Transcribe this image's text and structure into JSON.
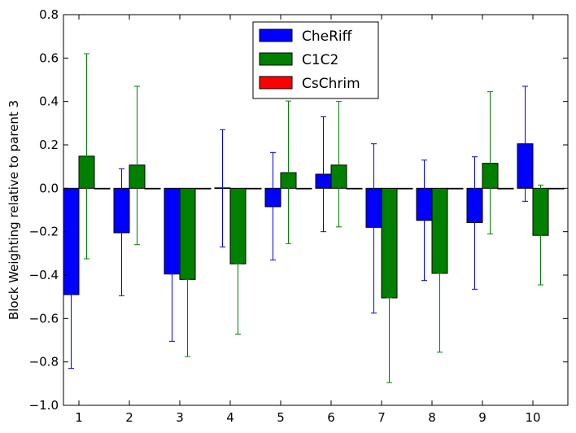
{
  "chart_data": {
    "type": "bar",
    "title": "",
    "xlabel": "",
    "ylabel": "Block Weighting relative to parent 3",
    "ylim": [
      -1.0,
      0.8
    ],
    "yticks": [
      -1.0,
      -0.8,
      -0.6,
      -0.4,
      -0.2,
      0.0,
      0.2,
      0.4,
      0.6,
      0.8
    ],
    "ytick_labels": [
      "−1.0",
      "−0.8",
      "−0.6",
      "−0.4",
      "−0.2",
      "0.0",
      "0.2",
      "0.4",
      "0.6",
      "0.8"
    ],
    "categories": [
      "1",
      "2",
      "3",
      "4",
      "5",
      "6",
      "7",
      "8",
      "9",
      "10"
    ],
    "grid": false,
    "legend_position": "top-center",
    "series": [
      {
        "name": "CheRiff",
        "color": "#0000ff",
        "values": [
          -0.49,
          -0.205,
          -0.395,
          0.002,
          -0.085,
          0.065,
          -0.18,
          -0.148,
          -0.158,
          0.205
        ],
        "err_low": [
          -0.83,
          -0.495,
          -0.705,
          -0.27,
          -0.33,
          -0.2,
          -0.575,
          -0.425,
          -0.465,
          -0.06
        ],
        "err_high": [
          -0.49,
          0.09,
          -0.395,
          0.27,
          0.165,
          0.33,
          0.205,
          0.13,
          0.145,
          0.47
        ]
      },
      {
        "name": "C1C2",
        "color": "#008000",
        "values": [
          0.148,
          0.107,
          -0.42,
          -0.348,
          0.072,
          0.107,
          -0.505,
          -0.392,
          0.115,
          -0.217
        ],
        "err_low": [
          -0.325,
          -0.26,
          -0.775,
          -0.672,
          -0.255,
          -0.178,
          -0.895,
          -0.755,
          -0.21,
          -0.445
        ],
        "err_high": [
          0.62,
          0.47,
          -0.42,
          -0.348,
          0.402,
          0.4,
          -0.505,
          -0.392,
          0.445,
          0.015
        ]
      },
      {
        "name": "CsChrim",
        "color": "#ff0000",
        "values": [
          0,
          0,
          0,
          0,
          0,
          0,
          0,
          0,
          0,
          0
        ]
      }
    ]
  }
}
